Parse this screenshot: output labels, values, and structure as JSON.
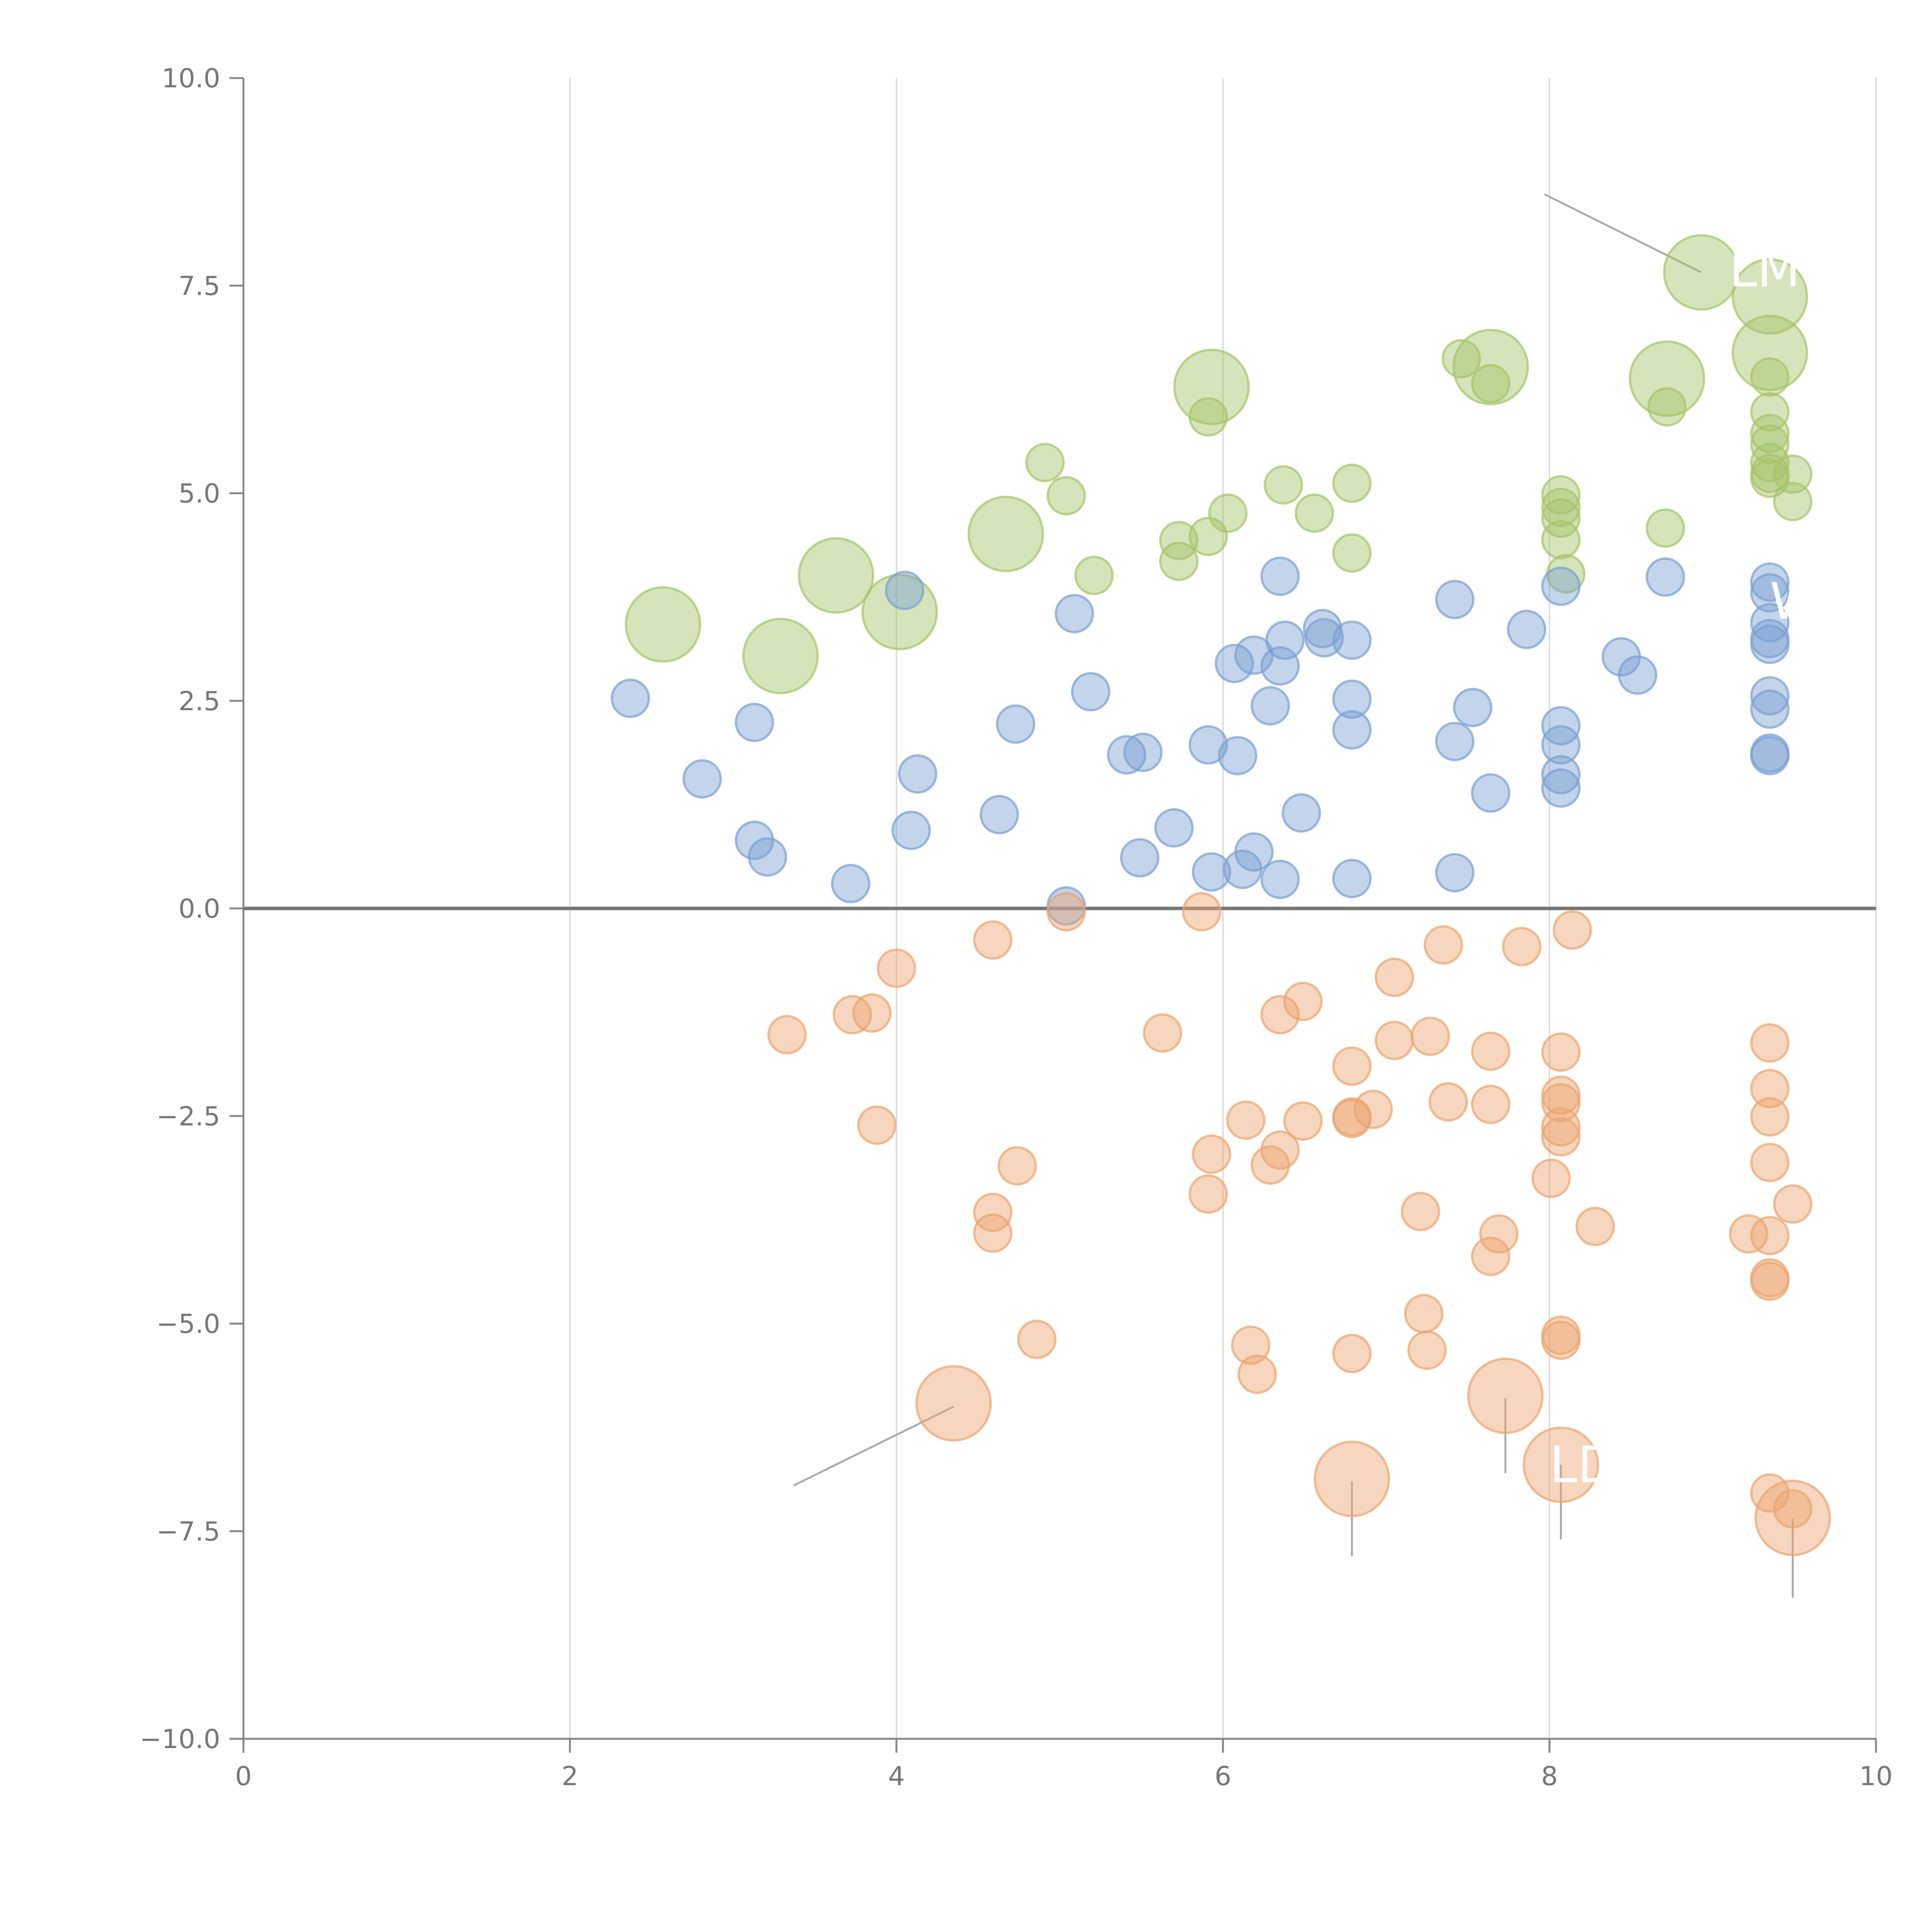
{
  "chart_data": {
    "type": "scatter",
    "title": "",
    "xlabel": "",
    "ylabel": "",
    "xlim": [
      0,
      10
    ],
    "ylim": [
      -10,
      10
    ],
    "grid": "vertical",
    "x_ticks": [
      0,
      2,
      4,
      6,
      8,
      10
    ],
    "y_ticks": [
      -10,
      -7.5,
      -5,
      -2.5,
      0,
      2.5,
      5,
      7.5,
      10
    ],
    "x_tick_labels": [
      "0",
      "2",
      "4",
      "6",
      "8",
      "10"
    ],
    "y_tick_labels": [
      "−10.0",
      "−7.5",
      "−5.0",
      "−2.5",
      "0.0",
      "2.5",
      "5.0",
      "7.5",
      "10.0"
    ],
    "zero_line": 0,
    "series": [
      {
        "name": "green",
        "color": "#a5c468",
        "points": [
          [
            2.57,
            3.42,
            2
          ],
          [
            3.29,
            3.04,
            2
          ],
          [
            3.63,
            4.01,
            2
          ],
          [
            4.02,
            3.57,
            2
          ],
          [
            4.67,
            4.51,
            2
          ],
          [
            5.93,
            6.28,
            2
          ],
          [
            7.64,
            6.52,
            2
          ],
          [
            8.72,
            6.38,
            2
          ],
          [
            8.93,
            7.66,
            2
          ],
          [
            9.35,
            7.37,
            2
          ],
          [
            9.35,
            6.69,
            2
          ],
          [
            4.91,
            5.37,
            1
          ],
          [
            5.04,
            4.97,
            1
          ],
          [
            5.21,
            4.01,
            1
          ],
          [
            5.73,
            4.43,
            1
          ],
          [
            5.73,
            4.18,
            1
          ],
          [
            5.91,
            4.48,
            1
          ],
          [
            5.91,
            5.92,
            1
          ],
          [
            6.03,
            4.76,
            1
          ],
          [
            6.37,
            5.1,
            1
          ],
          [
            6.56,
            4.76,
            1
          ],
          [
            6.79,
            4.28,
            1
          ],
          [
            6.79,
            5.12,
            1
          ],
          [
            7.46,
            6.62,
            1
          ],
          [
            7.64,
            6.32,
            1
          ],
          [
            8.07,
            4.98,
            1
          ],
          [
            8.07,
            4.83,
            1
          ],
          [
            8.07,
            4.7,
            1
          ],
          [
            8.07,
            4.44,
            1
          ],
          [
            8.1,
            4.03,
            1
          ],
          [
            8.71,
            4.58,
            1
          ],
          [
            8.72,
            6.04,
            1
          ],
          [
            9.35,
            6.4,
            1
          ],
          [
            9.35,
            5.98,
            1
          ],
          [
            9.35,
            5.72,
            1
          ],
          [
            9.35,
            5.59,
            1
          ],
          [
            9.35,
            5.37,
            1
          ],
          [
            9.35,
            5.24,
            1
          ],
          [
            9.35,
            5.18,
            1
          ],
          [
            9.49,
            5.23,
            1
          ],
          [
            9.49,
            4.9,
            1
          ]
        ]
      },
      {
        "name": "blue",
        "color": "#7b9fd2",
        "points": [
          [
            2.37,
            2.53,
            1
          ],
          [
            2.81,
            1.56,
            1
          ],
          [
            3.13,
            2.24,
            1
          ],
          [
            3.13,
            0.82,
            1
          ],
          [
            3.21,
            0.62,
            1
          ],
          [
            3.72,
            0.3,
            1
          ],
          [
            4.05,
            3.83,
            1
          ],
          [
            4.09,
            0.94,
            1
          ],
          [
            4.13,
            1.62,
            1
          ],
          [
            4.63,
            1.13,
            1
          ],
          [
            4.73,
            2.22,
            1
          ],
          [
            5.09,
            3.55,
            1
          ],
          [
            5.19,
            2.61,
            1
          ],
          [
            5.04,
            0.03,
            1
          ],
          [
            5.41,
            1.85,
            1
          ],
          [
            5.51,
            1.88,
            1
          ],
          [
            5.49,
            0.61,
            1
          ],
          [
            5.7,
            0.97,
            1
          ],
          [
            5.91,
            1.97,
            1
          ],
          [
            5.93,
            0.44,
            1
          ],
          [
            6.07,
            2.95,
            1
          ],
          [
            6.09,
            1.84,
            1
          ],
          [
            6.12,
            0.47,
            1
          ],
          [
            6.19,
            0.68,
            1
          ],
          [
            6.19,
            3.05,
            1
          ],
          [
            6.29,
            2.44,
            1
          ],
          [
            6.35,
            4.0,
            1
          ],
          [
            6.35,
            2.92,
            1
          ],
          [
            6.38,
            3.23,
            1
          ],
          [
            6.35,
            0.35,
            1
          ],
          [
            6.48,
            1.15,
            1
          ],
          [
            6.61,
            3.37,
            1
          ],
          [
            6.62,
            3.26,
            1
          ],
          [
            6.79,
            3.23,
            1
          ],
          [
            6.79,
            2.52,
            1
          ],
          [
            6.79,
            2.15,
            1
          ],
          [
            6.79,
            0.36,
            1
          ],
          [
            7.42,
            3.72,
            1
          ],
          [
            7.42,
            2.01,
            1
          ],
          [
            7.42,
            0.43,
            1
          ],
          [
            7.53,
            2.42,
            1
          ],
          [
            7.64,
            1.39,
            1
          ],
          [
            7.86,
            3.36,
            1
          ],
          [
            8.07,
            3.88,
            1
          ],
          [
            8.07,
            2.2,
            1
          ],
          [
            8.07,
            1.97,
            1
          ],
          [
            8.07,
            1.61,
            1
          ],
          [
            8.07,
            1.45,
            1
          ],
          [
            8.44,
            3.03,
            1
          ],
          [
            8.54,
            2.81,
            1
          ],
          [
            8.71,
            3.99,
            1
          ],
          [
            9.35,
            3.93,
            1
          ],
          [
            9.35,
            3.8,
            1
          ],
          [
            9.35,
            3.44,
            1
          ],
          [
            9.35,
            3.25,
            1
          ],
          [
            9.35,
            3.18,
            1
          ],
          [
            9.35,
            2.56,
            1
          ],
          [
            9.35,
            2.4,
            1
          ],
          [
            9.35,
            1.87,
            1
          ],
          [
            9.35,
            1.84,
            1
          ]
        ]
      },
      {
        "name": "orange",
        "color": "#eca46e",
        "points": [
          [
            4.35,
            -5.96,
            2
          ],
          [
            6.79,
            -6.87,
            2
          ],
          [
            7.73,
            -5.87,
            2
          ],
          [
            8.07,
            -6.7,
            2
          ],
          [
            9.49,
            -7.34,
            2
          ],
          [
            3.33,
            -1.52,
            1
          ],
          [
            3.73,
            -1.28,
            1
          ],
          [
            3.85,
            -1.26,
            1
          ],
          [
            3.88,
            -2.61,
            1
          ],
          [
            4.0,
            -0.72,
            1
          ],
          [
            4.59,
            -0.38,
            1
          ],
          [
            4.59,
            -3.66,
            1
          ],
          [
            4.59,
            -3.91,
            1
          ],
          [
            4.74,
            -3.1,
            1
          ],
          [
            4.86,
            -5.19,
            1
          ],
          [
            5.04,
            -0.04,
            1
          ],
          [
            5.63,
            -1.5,
            1
          ],
          [
            5.87,
            -0.04,
            1
          ],
          [
            5.93,
            -2.96,
            1
          ],
          [
            5.91,
            -3.44,
            1
          ],
          [
            6.14,
            -2.55,
            1
          ],
          [
            6.17,
            -5.26,
            1
          ],
          [
            6.21,
            -5.61,
            1
          ],
          [
            6.29,
            -3.09,
            1
          ],
          [
            6.35,
            -1.28,
            1
          ],
          [
            6.35,
            -2.91,
            1
          ],
          [
            6.49,
            -1.12,
            1
          ],
          [
            6.49,
            -2.56,
            1
          ],
          [
            6.79,
            -1.9,
            1
          ],
          [
            6.79,
            -2.51,
            1
          ],
          [
            6.79,
            -2.53,
            1
          ],
          [
            6.79,
            -5.36,
            1
          ],
          [
            6.92,
            -2.42,
            1
          ],
          [
            7.05,
            -0.83,
            1
          ],
          [
            7.05,
            -1.59,
            1
          ],
          [
            7.21,
            -3.65,
            1
          ],
          [
            7.23,
            -4.88,
            1
          ],
          [
            7.25,
            -5.32,
            1
          ],
          [
            7.27,
            -1.54,
            1
          ],
          [
            7.35,
            -0.44,
            1
          ],
          [
            7.38,
            -2.33,
            1
          ],
          [
            7.64,
            -1.72,
            1
          ],
          [
            7.64,
            -2.36,
            1
          ],
          [
            7.64,
            -4.19,
            1
          ],
          [
            7.69,
            -3.92,
            1
          ],
          [
            7.83,
            -0.46,
            1
          ],
          [
            8.01,
            -3.25,
            1
          ],
          [
            8.07,
            -1.73,
            1
          ],
          [
            8.07,
            -2.25,
            1
          ],
          [
            8.07,
            -2.34,
            1
          ],
          [
            8.07,
            -2.63,
            1
          ],
          [
            8.07,
            -2.75,
            1
          ],
          [
            8.07,
            -5.14,
            1
          ],
          [
            8.07,
            -5.2,
            1
          ],
          [
            8.14,
            -0.26,
            1
          ],
          [
            8.28,
            -3.83,
            1
          ],
          [
            9.22,
            -3.92,
            1
          ],
          [
            9.35,
            -1.62,
            1
          ],
          [
            9.35,
            -2.17,
            1
          ],
          [
            9.35,
            -2.51,
            1
          ],
          [
            9.35,
            -3.06,
            1
          ],
          [
            9.35,
            -3.94,
            1
          ],
          [
            9.35,
            -4.45,
            1
          ],
          [
            9.35,
            -4.49,
            1
          ],
          [
            9.35,
            -7.04,
            1
          ],
          [
            9.49,
            -3.56,
            1
          ],
          [
            9.49,
            -7.23,
            1
          ]
        ]
      }
    ],
    "annotations": [
      {
        "text": "LM",
        "color": "#ffffff",
        "x": 9.1,
        "y": 7.7
      },
      {
        "text": "W",
        "color": "#ffffff",
        "x": 9.35,
        "y": 3.7
      },
      {
        "text": "LDC",
        "color": "#ffffff",
        "x": 8.0,
        "y": -6.7
      }
    ]
  }
}
